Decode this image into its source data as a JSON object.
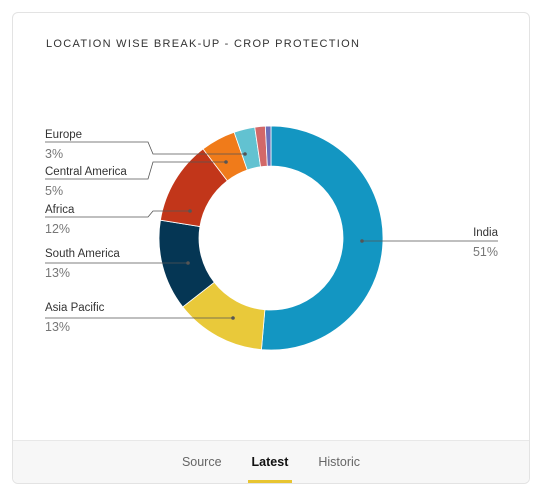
{
  "chart_data": {
    "type": "pie",
    "title": "LOCATION WISE BREAK-UP - CROP PROTECTION",
    "donut": true,
    "slices": [
      {
        "label": "India",
        "value": 51,
        "display": "51%",
        "color": "#1396c2"
      },
      {
        "label": "Asia Pacific",
        "value": 13,
        "display": "13%",
        "color": "#e9c93a"
      },
      {
        "label": "South America",
        "value": 13,
        "display": "13%",
        "color": "#053654"
      },
      {
        "label": "Africa",
        "value": 12,
        "display": "12%",
        "color": "#c2361a"
      },
      {
        "label": "Central America",
        "value": 5,
        "display": "5%",
        "color": "#f07b1a"
      },
      {
        "label": "Europe",
        "value": 3,
        "display": "3%",
        "color": "#62c2d1"
      },
      {
        "label": "",
        "value": 1.5,
        "display": "",
        "color": "#d26868"
      },
      {
        "label": "",
        "value": 0.8,
        "display": "",
        "color": "#6d6fb8"
      }
    ],
    "legend": "callout-labels"
  },
  "footer": {
    "tabs": [
      {
        "label": "Source",
        "active": false
      },
      {
        "label": "Latest",
        "active": true
      },
      {
        "label": "Historic",
        "active": false
      }
    ]
  }
}
